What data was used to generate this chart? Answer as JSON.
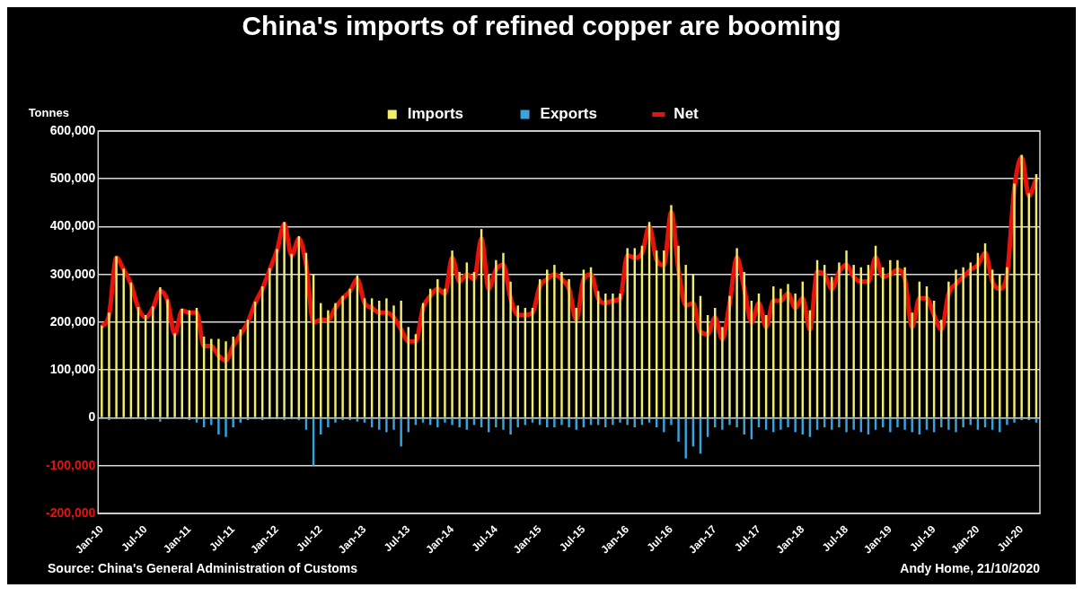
{
  "chart_data": {
    "type": "bar",
    "title": "China's imports of refined copper are booming",
    "ylabel": "Tonnes",
    "categories": [
      "Jan-10",
      null,
      null,
      null,
      null,
      null,
      "Jul-10",
      null,
      null,
      null,
      null,
      null,
      "Jan-11",
      null,
      null,
      null,
      null,
      null,
      "Jul-11",
      null,
      null,
      null,
      null,
      null,
      "Jan-12",
      null,
      null,
      null,
      null,
      null,
      "Jul-12",
      null,
      null,
      null,
      null,
      null,
      "Jan-13",
      null,
      null,
      null,
      null,
      null,
      "Jul-13",
      null,
      null,
      null,
      null,
      null,
      "Jan-14",
      null,
      null,
      null,
      null,
      null,
      "Jul-14",
      null,
      null,
      null,
      null,
      null,
      "Jan-15",
      null,
      null,
      null,
      null,
      null,
      "Jul-15",
      null,
      null,
      null,
      null,
      null,
      "Jan-16",
      null,
      null,
      null,
      null,
      null,
      "Jul-16",
      null,
      null,
      null,
      null,
      null,
      "Jan-17",
      null,
      null,
      null,
      null,
      null,
      "Jul-17",
      null,
      null,
      null,
      null,
      null,
      "Jan-18",
      null,
      null,
      null,
      null,
      null,
      "Jul-18",
      null,
      null,
      null,
      null,
      null,
      "Jan-19",
      null,
      null,
      null,
      null,
      null,
      "Jul-19",
      null,
      null,
      null,
      null,
      null,
      "Jan-20",
      null,
      null,
      null,
      null,
      null,
      "Jul-20",
      null,
      null
    ],
    "series": [
      {
        "name": "Imports",
        "color": "#f2ee6a",
        "values": [
          193000,
          220000,
          338000,
          312000,
          283000,
          232000,
          215000,
          233000,
          273000,
          248000,
          177000,
          228000,
          225000,
          230000,
          170000,
          165000,
          165000,
          160000,
          170000,
          185000,
          205000,
          243000,
          275000,
          313000,
          353000,
          410000,
          343000,
          380000,
          345000,
          300000,
          240000,
          225000,
          240000,
          255000,
          270000,
          298000,
          250000,
          250000,
          245000,
          250000,
          235000,
          245000,
          190000,
          175000,
          240000,
          270000,
          290000,
          270000,
          350000,
          305000,
          325000,
          305000,
          395000,
          300000,
          330000,
          345000,
          285000,
          235000,
          230000,
          230000,
          290000,
          310000,
          320000,
          305000,
          290000,
          230000,
          310000,
          315000,
          265000,
          260000,
          260000,
          260000,
          355000,
          355000,
          360000,
          410000,
          350000,
          350000,
          445000,
          360000,
          320000,
          300000,
          255000,
          215000,
          230000,
          190000,
          255000,
          355000,
          305000,
          245000,
          260000,
          215000,
          275000,
          270000,
          280000,
          260000,
          285000,
          225000,
          330000,
          320000,
          295000,
          325000,
          350000,
          320000,
          315000,
          320000,
          360000,
          315000,
          330000,
          330000,
          315000,
          220000,
          285000,
          275000,
          245000,
          205000,
          285000,
          310000,
          315000,
          325000,
          345000,
          365000,
          310000,
          300000,
          315000,
          490000,
          550000,
          470000,
          510000
        ]
      },
      {
        "name": "Exports",
        "color": "#3ba3dc",
        "values": [
          -3000,
          -5000,
          -3000,
          -2000,
          -3000,
          -2000,
          -5000,
          -3000,
          -8000,
          -3000,
          -2000,
          -3000,
          -5000,
          -10000,
          -20000,
          -15000,
          -35000,
          -40000,
          -20000,
          -10000,
          -5000,
          -3000,
          -5000,
          -3000,
          -3000,
          -5000,
          -3000,
          -5000,
          -25000,
          -100000,
          -35000,
          -20000,
          -10000,
          -5000,
          -5000,
          -8000,
          -10000,
          -20000,
          -25000,
          -30000,
          -25000,
          -60000,
          -30000,
          -15000,
          -10000,
          -15000,
          -20000,
          -10000,
          -15000,
          -20000,
          -25000,
          -15000,
          -20000,
          -30000,
          -20000,
          -25000,
          -35000,
          -20000,
          -15000,
          -10000,
          -15000,
          -20000,
          -20000,
          -15000,
          -20000,
          -25000,
          -20000,
          -15000,
          -15000,
          -20000,
          -15000,
          -10000,
          -15000,
          -20000,
          -15000,
          -10000,
          -20000,
          -30000,
          -15000,
          -50000,
          -85000,
          -60000,
          -75000,
          -40000,
          -20000,
          -25000,
          -15000,
          -20000,
          -35000,
          -45000,
          -20000,
          -25000,
          -30000,
          -25000,
          -20000,
          -30000,
          -35000,
          -40000,
          -25000,
          -20000,
          -25000,
          -20000,
          -30000,
          -25000,
          -30000,
          -35000,
          -25000,
          -20000,
          -30000,
          -20000,
          -25000,
          -30000,
          -35000,
          -25000,
          -30000,
          -20000,
          -25000,
          -30000,
          -20000,
          -15000,
          -25000,
          -20000,
          -25000,
          -30000,
          -15000,
          -10000,
          -5000,
          -5000,
          -10000
        ]
      },
      {
        "name": "Net",
        "type": "line",
        "color": "#e8120c",
        "values": [
          190000,
          215000,
          335000,
          310000,
          280000,
          230000,
          210000,
          230000,
          265000,
          245000,
          175000,
          225000,
          220000,
          220000,
          150000,
          150000,
          130000,
          120000,
          150000,
          175000,
          200000,
          240000,
          270000,
          310000,
          350000,
          405000,
          340000,
          375000,
          320000,
          200000,
          205000,
          205000,
          230000,
          250000,
          265000,
          290000,
          240000,
          230000,
          220000,
          220000,
          210000,
          185000,
          160000,
          160000,
          230000,
          255000,
          270000,
          260000,
          335000,
          285000,
          300000,
          290000,
          375000,
          270000,
          310000,
          320000,
          250000,
          215000,
          215000,
          220000,
          275000,
          290000,
          300000,
          290000,
          270000,
          205000,
          290000,
          300000,
          250000,
          240000,
          245000,
          250000,
          340000,
          335000,
          345000,
          400000,
          330000,
          320000,
          430000,
          310000,
          235000,
          240000,
          180000,
          175000,
          210000,
          165000,
          240000,
          335000,
          270000,
          200000,
          240000,
          190000,
          245000,
          245000,
          260000,
          230000,
          250000,
          185000,
          305000,
          300000,
          270000,
          305000,
          320000,
          295000,
          285000,
          285000,
          335000,
          295000,
          300000,
          310000,
          290000,
          190000,
          250000,
          250000,
          215000,
          185000,
          260000,
          280000,
          295000,
          310000,
          320000,
          345000,
          285000,
          270000,
          300000,
          480000,
          545000,
          465000,
          500000
        ]
      }
    ],
    "stacked": true,
    "ylim": [
      -200000,
      600000
    ],
    "yticks": [
      {
        "value": -200000,
        "label": "-200,000"
      },
      {
        "value": -100000,
        "label": "-100,000"
      },
      0,
      {
        "value": 100000,
        "label": "100,000"
      },
      {
        "value": 200000,
        "label": "200,000"
      },
      {
        "value": 300000,
        "label": "300,000"
      },
      {
        "value": 400000,
        "label": "400,000"
      },
      {
        "value": 500000,
        "label": "500,000"
      },
      {
        "value": 600000,
        "label": "600,000"
      }
    ],
    "grid": "y",
    "legend": "top",
    "marker": "none",
    "line_style": "solid",
    "annotations": [
      "Source: China's General Administration of Customs",
      "Andy Home, 21/10/2020"
    ]
  }
}
